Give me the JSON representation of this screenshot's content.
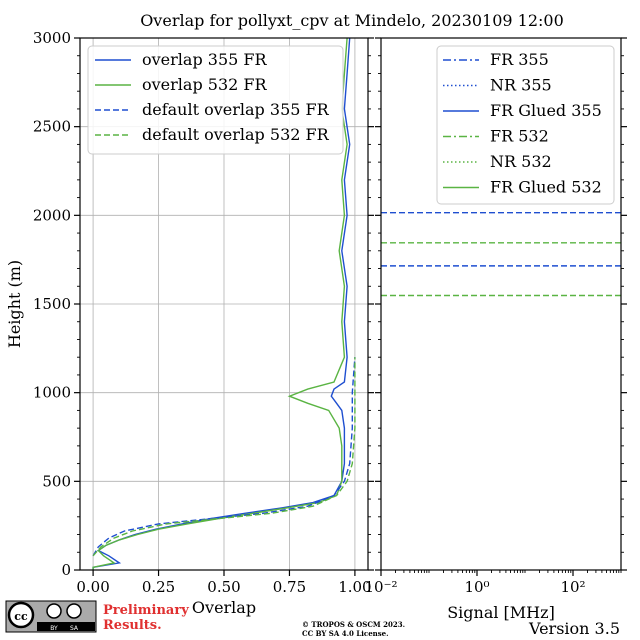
{
  "title": "Overlap for pollyxt_cpv at Mindelo, 20230109 12:00",
  "footer": {
    "license_badge": "cc BY SA",
    "preliminary_line1": "Preliminary",
    "preliminary_line2": "Results.",
    "copyright_line1": "© TROPOS & OSCM 2023.",
    "copyright_line2": "CC BY SA 4.0 License.",
    "version": "Version 3.5",
    "preliminary_color": "#e03030"
  },
  "chart_data": [
    {
      "type": "line",
      "xlabel": "Overlap",
      "ylabel": "Height (m)",
      "xlim": [
        -0.05,
        1.05
      ],
      "ylim": [
        0,
        3000
      ],
      "x_ticks": [
        0.0,
        0.25,
        0.5,
        0.75,
        1.0
      ],
      "x_tick_labels": [
        "0.00",
        "0.25",
        "0.50",
        "0.75",
        "1.00"
      ],
      "y_ticks": [
        0,
        500,
        1000,
        1500,
        2000,
        2500,
        3000
      ],
      "y_tick_labels": [
        "0",
        "500",
        "1000",
        "1500",
        "2000",
        "2500",
        "3000"
      ],
      "grid": true,
      "legend_position": "top-left",
      "series": [
        {
          "name": "overlap 355 FR",
          "color": "#1f4fd0",
          "dash": "solid",
          "points": [
            [
              0.0,
              0
            ],
            [
              0.0,
              15
            ],
            [
              0.1,
              40
            ],
            [
              0.06,
              80
            ],
            [
              0.02,
              110
            ],
            [
              0.05,
              140
            ],
            [
              0.1,
              170
            ],
            [
              0.16,
              200
            ],
            [
              0.24,
              230
            ],
            [
              0.34,
              260
            ],
            [
              0.45,
              290
            ],
            [
              0.58,
              320
            ],
            [
              0.72,
              350
            ],
            [
              0.84,
              380
            ],
            [
              0.92,
              420
            ],
            [
              0.95,
              500
            ],
            [
              0.96,
              600
            ],
            [
              0.96,
              700
            ],
            [
              0.96,
              800
            ],
            [
              0.95,
              900
            ],
            [
              0.93,
              940
            ],
            [
              0.91,
              980
            ],
            [
              0.92,
              1020
            ],
            [
              0.96,
              1060
            ],
            [
              0.97,
              1200
            ],
            [
              0.96,
              1400
            ],
            [
              0.97,
              1600
            ],
            [
              0.95,
              1800
            ],
            [
              0.97,
              2000
            ],
            [
              0.96,
              2200
            ],
            [
              0.98,
              2400
            ],
            [
              0.96,
              2600
            ],
            [
              0.97,
              2800
            ],
            [
              0.98,
              3000
            ]
          ]
        },
        {
          "name": "overlap 532 FR",
          "color": "#5ab443",
          "dash": "solid",
          "points": [
            [
              0.0,
              0
            ],
            [
              0.0,
              15
            ],
            [
              0.08,
              40
            ],
            [
              0.04,
              80
            ],
            [
              0.02,
              110
            ],
            [
              0.05,
              140
            ],
            [
              0.1,
              170
            ],
            [
              0.17,
              200
            ],
            [
              0.25,
              230
            ],
            [
              0.36,
              260
            ],
            [
              0.48,
              290
            ],
            [
              0.61,
              320
            ],
            [
              0.74,
              350
            ],
            [
              0.86,
              380
            ],
            [
              0.93,
              420
            ],
            [
              0.95,
              500
            ],
            [
              0.95,
              600
            ],
            [
              0.95,
              700
            ],
            [
              0.94,
              800
            ],
            [
              0.9,
              900
            ],
            [
              0.82,
              940
            ],
            [
              0.75,
              980
            ],
            [
              0.82,
              1020
            ],
            [
              0.92,
              1060
            ],
            [
              0.96,
              1200
            ],
            [
              0.95,
              1400
            ],
            [
              0.96,
              1600
            ],
            [
              0.94,
              1800
            ],
            [
              0.96,
              2000
            ],
            [
              0.95,
              2200
            ],
            [
              0.97,
              2400
            ],
            [
              0.95,
              2600
            ],
            [
              0.96,
              2800
            ],
            [
              0.97,
              3000
            ]
          ]
        },
        {
          "name": "default overlap 355 FR",
          "color": "#1f4fd0",
          "dash": "dashed",
          "points": [
            [
              0.0,
              80
            ],
            [
              0.02,
              130
            ],
            [
              0.06,
              180
            ],
            [
              0.12,
              220
            ],
            [
              0.25,
              260
            ],
            [
              0.45,
              290
            ],
            [
              0.65,
              320
            ],
            [
              0.82,
              360
            ],
            [
              0.92,
              420
            ],
            [
              0.96,
              500
            ],
            [
              0.98,
              600
            ],
            [
              0.99,
              800
            ],
            [
              0.99,
              1000
            ],
            [
              1.0,
              1200
            ]
          ]
        },
        {
          "name": "default overlap 532 FR",
          "color": "#5ab443",
          "dash": "dashed",
          "points": [
            [
              0.0,
              80
            ],
            [
              0.03,
              130
            ],
            [
              0.08,
              180
            ],
            [
              0.15,
              220
            ],
            [
              0.28,
              260
            ],
            [
              0.48,
              290
            ],
            [
              0.68,
              320
            ],
            [
              0.84,
              360
            ],
            [
              0.93,
              420
            ],
            [
              0.97,
              500
            ],
            [
              0.99,
              600
            ],
            [
              1.0,
              800
            ],
            [
              1.0,
              1000
            ],
            [
              1.0,
              1200
            ]
          ]
        }
      ]
    },
    {
      "type": "line",
      "xlabel": "Signal [MHz]",
      "x_scale": "log",
      "xlim": [
        0.01,
        1000
      ],
      "ylim": [
        0,
        3000
      ],
      "x_ticks": [
        0.01,
        1,
        100
      ],
      "x_tick_labels": [
        "10⁻²",
        "10⁰",
        "10²"
      ],
      "legend_position": "top-right",
      "series": [
        {
          "name": "FR 355",
          "color": "#1f4fd0",
          "dash": "dashdot"
        },
        {
          "name": "NR 355",
          "color": "#1f4fd0",
          "dash": "dotted"
        },
        {
          "name": "FR Glued 355",
          "color": "#1f4fd0",
          "dash": "solid"
        },
        {
          "name": "FR 532",
          "color": "#5ab443",
          "dash": "dashdot"
        },
        {
          "name": "NR 532",
          "color": "#5ab443",
          "dash": "dotted"
        },
        {
          "name": "FR Glued 532",
          "color": "#5ab443",
          "dash": "solid"
        }
      ],
      "hlines": [
        {
          "y": 2015,
          "color": "#1f4fd0"
        },
        {
          "y": 1845,
          "color": "#5ab443"
        },
        {
          "y": 1715,
          "color": "#1f4fd0"
        },
        {
          "y": 1548,
          "color": "#5ab443"
        }
      ]
    }
  ]
}
